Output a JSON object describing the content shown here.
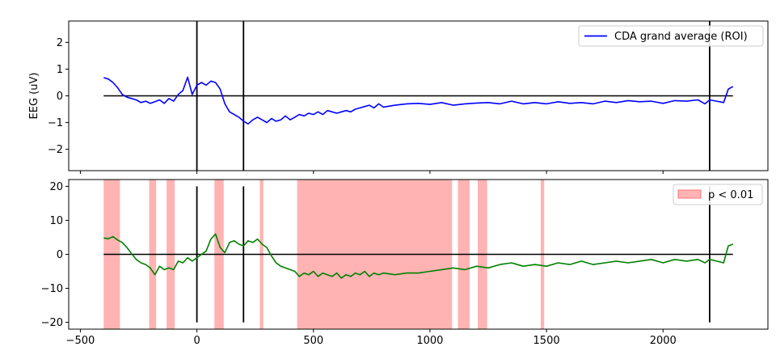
{
  "chart_data": [
    {
      "type": "line",
      "title": "",
      "xlabel": "",
      "ylabel": "EEG (uV)",
      "xlim": [
        -550,
        2450
      ],
      "ylim": [
        -2.8,
        2.8
      ],
      "xticks": [
        -500,
        0,
        500,
        1000,
        1500,
        2000
      ],
      "show_xtick_labels": false,
      "yticks": [
        -2,
        -1,
        0,
        1,
        2
      ],
      "ytick_labels": [
        "−2",
        "−1",
        "0",
        "1",
        "2"
      ],
      "grid": false,
      "legend_position": "top-right",
      "colors": {
        "series": "#0000ff",
        "reference": "#000000"
      },
      "zero_line": {
        "x0": -400,
        "x1": 2300,
        "y": 0
      },
      "vertical_lines": [
        0,
        200,
        2200
      ],
      "series": [
        {
          "name": "CDA grand average (ROI)",
          "x": [
            -400,
            -380,
            -360,
            -340,
            -320,
            -300,
            -280,
            -260,
            -240,
            -220,
            -200,
            -180,
            -160,
            -140,
            -120,
            -100,
            -80,
            -60,
            -40,
            -20,
            0,
            20,
            40,
            60,
            80,
            100,
            120,
            140,
            160,
            180,
            200,
            220,
            240,
            260,
            280,
            300,
            320,
            340,
            360,
            380,
            400,
            420,
            440,
            460,
            480,
            500,
            520,
            540,
            560,
            580,
            600,
            620,
            640,
            660,
            680,
            700,
            720,
            740,
            760,
            780,
            800,
            850,
            900,
            950,
            1000,
            1050,
            1100,
            1150,
            1200,
            1250,
            1300,
            1350,
            1400,
            1450,
            1500,
            1550,
            1600,
            1650,
            1700,
            1750,
            1800,
            1850,
            1900,
            1950,
            2000,
            2050,
            2100,
            2150,
            2180,
            2200,
            2230,
            2260,
            2280,
            2300
          ],
          "y": [
            0.68,
            0.63,
            0.5,
            0.3,
            0.05,
            -0.05,
            -0.1,
            -0.15,
            -0.25,
            -0.2,
            -0.28,
            -0.22,
            -0.15,
            -0.28,
            -0.1,
            -0.2,
            0.05,
            0.2,
            0.7,
            0.05,
            0.4,
            0.5,
            0.4,
            0.55,
            0.5,
            0.25,
            -0.3,
            -0.6,
            -0.7,
            -0.8,
            -0.95,
            -1.05,
            -0.9,
            -0.8,
            -0.9,
            -1.0,
            -0.85,
            -0.95,
            -0.9,
            -0.75,
            -0.9,
            -0.8,
            -0.7,
            -0.75,
            -0.65,
            -0.7,
            -0.6,
            -0.7,
            -0.55,
            -0.6,
            -0.65,
            -0.6,
            -0.55,
            -0.6,
            -0.5,
            -0.45,
            -0.4,
            -0.35,
            -0.45,
            -0.3,
            -0.42,
            -0.35,
            -0.3,
            -0.28,
            -0.32,
            -0.25,
            -0.35,
            -0.3,
            -0.27,
            -0.25,
            -0.3,
            -0.2,
            -0.3,
            -0.25,
            -0.3,
            -0.22,
            -0.28,
            -0.25,
            -0.3,
            -0.2,
            -0.25,
            -0.18,
            -0.22,
            -0.2,
            -0.28,
            -0.18,
            -0.2,
            -0.15,
            -0.3,
            -0.15,
            -0.2,
            -0.25,
            0.25,
            0.35
          ]
        }
      ]
    },
    {
      "type": "line",
      "title": "",
      "xlabel": "",
      "ylabel": "",
      "xlim": [
        -550,
        2450
      ],
      "ylim": [
        -22,
        22
      ],
      "xticks": [
        -500,
        0,
        500,
        1000,
        1500,
        2000
      ],
      "xtick_labels": [
        "−500",
        "0",
        "500",
        "1000",
        "1500",
        "2000"
      ],
      "yticks": [
        -20,
        -10,
        0,
        10,
        20
      ],
      "ytick_labels": [
        "−20",
        "−10",
        "0",
        "10",
        "20"
      ],
      "grid": false,
      "legend_position": "top-right",
      "colors": {
        "series": "#008000",
        "reference": "#000000",
        "significance": "#ff9999"
      },
      "zero_line": {
        "x0": -400,
        "x1": 2300,
        "y": 0
      },
      "vertical_lines": [
        0,
        200,
        2200
      ],
      "vertical_line_range": [
        -20,
        20
      ],
      "significant_intervals": {
        "name": "p < 0.01",
        "ranges": [
          [
            -400,
            -330
          ],
          [
            -205,
            -175
          ],
          [
            -130,
            -95
          ],
          [
            75,
            115
          ],
          [
            270,
            285
          ],
          [
            430,
            1095
          ],
          [
            1120,
            1170
          ],
          [
            1205,
            1245
          ],
          [
            1475,
            1490
          ]
        ]
      },
      "series": [
        {
          "name": "",
          "x": [
            -400,
            -380,
            -360,
            -340,
            -320,
            -300,
            -280,
            -260,
            -240,
            -220,
            -200,
            -180,
            -160,
            -140,
            -120,
            -100,
            -80,
            -60,
            -40,
            -20,
            0,
            20,
            40,
            60,
            80,
            100,
            120,
            140,
            160,
            180,
            200,
            220,
            240,
            260,
            280,
            300,
            320,
            340,
            360,
            380,
            400,
            420,
            440,
            460,
            480,
            500,
            520,
            540,
            560,
            580,
            600,
            620,
            640,
            660,
            680,
            700,
            720,
            740,
            760,
            780,
            800,
            850,
            900,
            950,
            1000,
            1050,
            1100,
            1150,
            1200,
            1250,
            1300,
            1350,
            1400,
            1450,
            1500,
            1550,
            1600,
            1650,
            1700,
            1750,
            1800,
            1850,
            1900,
            1950,
            2000,
            2050,
            2100,
            2150,
            2180,
            2200,
            2230,
            2260,
            2280,
            2300
          ],
          "y": [
            4.8,
            4.6,
            5.2,
            4.2,
            3.5,
            2.0,
            0.2,
            -1.5,
            -2.5,
            -3.0,
            -4.0,
            -6.0,
            -3.5,
            -4.5,
            -4.0,
            -4.5,
            -2.0,
            -2.5,
            -1.0,
            -2.0,
            -1.0,
            0.0,
            1.0,
            4.5,
            6.0,
            2.0,
            0.5,
            3.5,
            4.0,
            3.0,
            2.5,
            4.0,
            3.5,
            4.5,
            3.0,
            2.0,
            -0.5,
            -2.5,
            -3.5,
            -4.0,
            -4.5,
            -5.0,
            -6.5,
            -5.5,
            -6.0,
            -5.0,
            -6.5,
            -5.5,
            -6.0,
            -6.5,
            -5.5,
            -7.0,
            -6.0,
            -6.5,
            -5.5,
            -6.0,
            -5.0,
            -6.5,
            -5.5,
            -6.0,
            -5.5,
            -6.0,
            -5.5,
            -5.5,
            -5.0,
            -4.5,
            -4.0,
            -4.5,
            -3.5,
            -4.0,
            -3.0,
            -2.5,
            -3.5,
            -3.0,
            -3.5,
            -2.5,
            -3.0,
            -2.0,
            -3.0,
            -2.5,
            -2.0,
            -2.5,
            -2.0,
            -1.5,
            -2.5,
            -1.5,
            -2.0,
            -1.5,
            -2.5,
            -1.5,
            -2.0,
            -2.5,
            2.5,
            3.0
          ]
        }
      ]
    }
  ]
}
